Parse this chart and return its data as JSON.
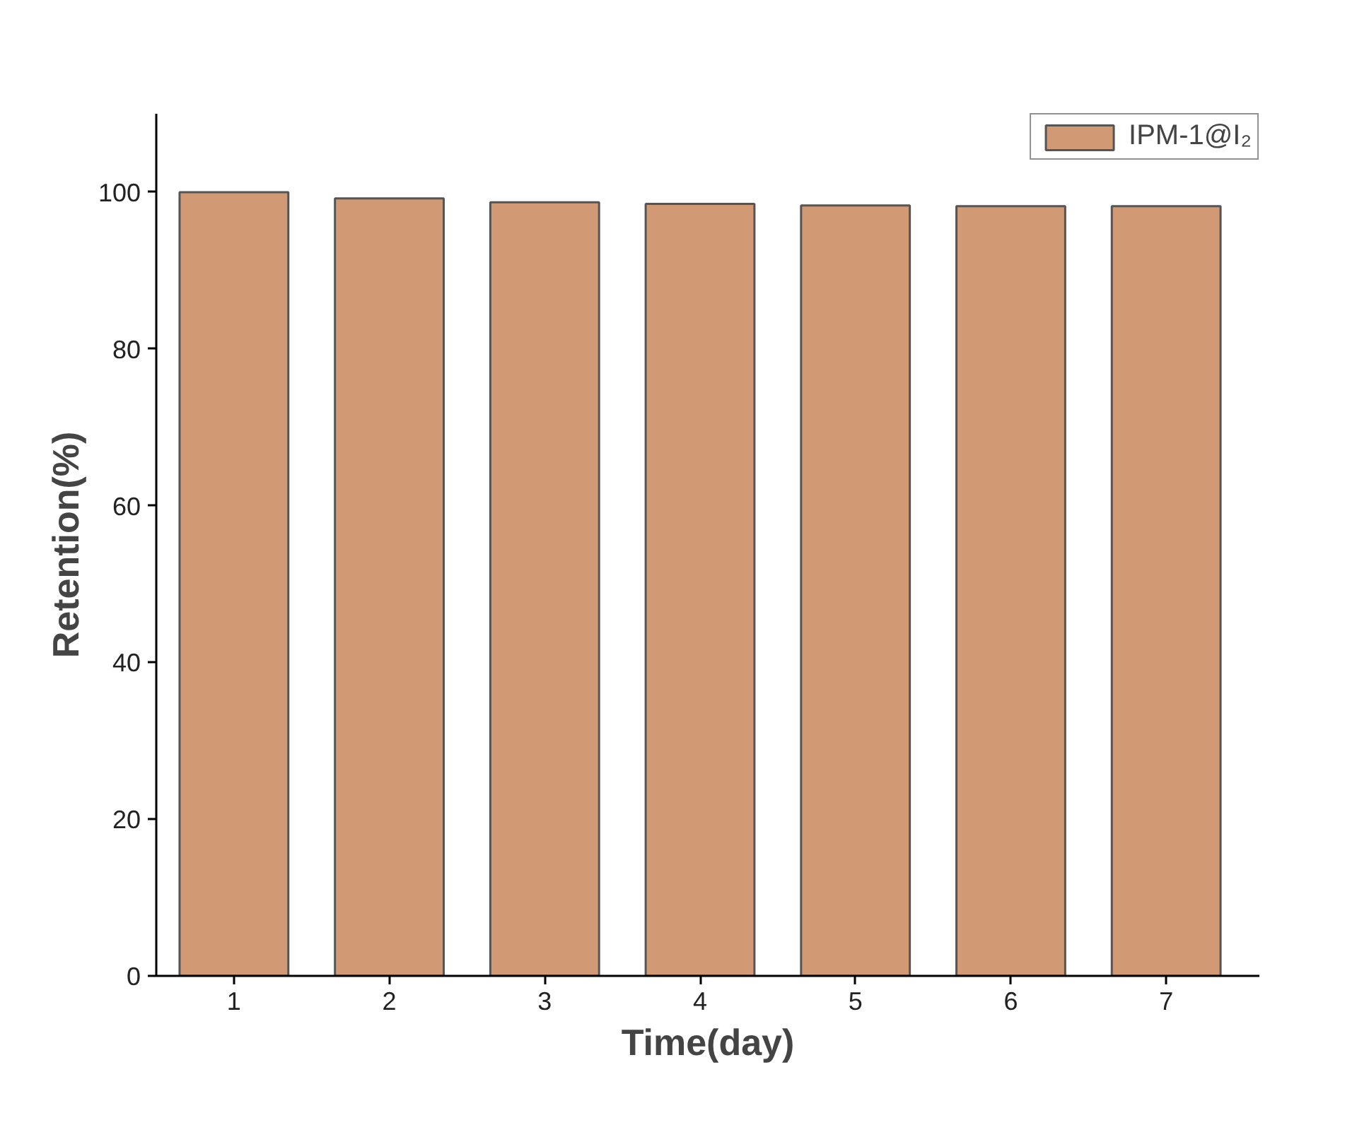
{
  "chart_data": {
    "type": "bar",
    "xlabel": "Time(day)",
    "ylabel": "Retention(%)",
    "categories": [
      "1",
      "2",
      "3",
      "4",
      "5",
      "6",
      "7"
    ],
    "series": [
      {
        "name": "IPM-1@I₂",
        "color": "#d19a75",
        "values": [
          100,
          99.2,
          98.7,
          98.5,
          98.3,
          98.2,
          98.2
        ]
      }
    ],
    "ylim": [
      0,
      110
    ],
    "yticks": [
      0,
      20,
      40,
      60,
      80,
      100
    ],
    "grid": false,
    "legend": "top right"
  }
}
